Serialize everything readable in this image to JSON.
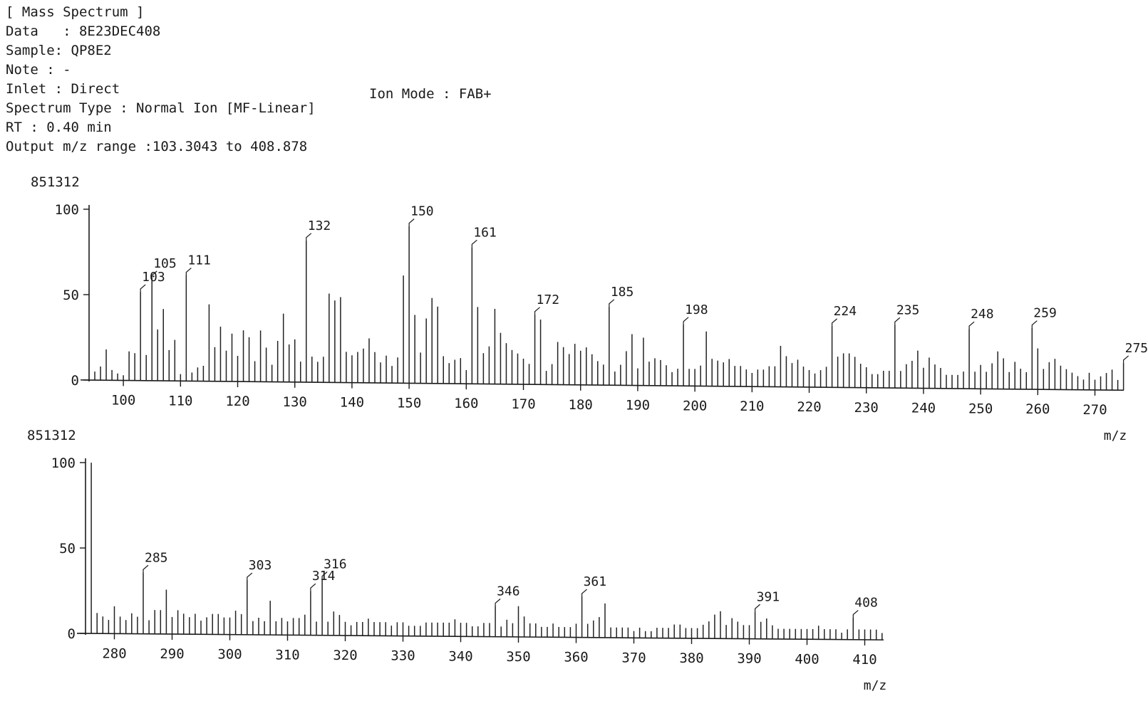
{
  "header": {
    "title": "[ Mass Spectrum ]",
    "data": "Data   : 8E23DEC408",
    "sample": "Sample: QP8E2",
    "note": "Note : -",
    "inlet": "Inlet : Direct",
    "ion_mode": "Ion Mode : FAB+",
    "spectrum_type": "Spectrum Type : Normal Ion [MF-Linear]",
    "rt": "RT : 0.40 min",
    "mz_range": "Output m/z range :103.3043 to 408.878"
  },
  "chart_data": [
    {
      "type": "bar",
      "xlabel": "m/z",
      "ylabel": "",
      "y_max_intensity_label": "851312",
      "xlim": [
        94,
        276
      ],
      "ylim": [
        0,
        100
      ],
      "x_ticks": [
        100,
        110,
        120,
        130,
        140,
        150,
        160,
        170,
        180,
        190,
        200,
        210,
        220,
        230,
        240,
        250,
        260,
        270
      ],
      "y_ticks": [
        0,
        50,
        100
      ],
      "labeled_peaks": [
        {
          "mz": 103,
          "rel": 52,
          "label": "103"
        },
        {
          "mz": 105,
          "rel": 60,
          "label": "105"
        },
        {
          "mz": 111,
          "rel": 62,
          "label": "111"
        },
        {
          "mz": 132,
          "rel": 83,
          "label": "132"
        },
        {
          "mz": 150,
          "rel": 92,
          "label": "150"
        },
        {
          "mz": 161,
          "rel": 80,
          "label": "161"
        },
        {
          "mz": 172,
          "rel": 41,
          "label": "172"
        },
        {
          "mz": 185,
          "rel": 46,
          "label": "185"
        },
        {
          "mz": 198,
          "rel": 36,
          "label": "198"
        },
        {
          "mz": 224,
          "rel": 36,
          "label": "224"
        },
        {
          "mz": 235,
          "rel": 37,
          "label": "235"
        },
        {
          "mz": 248,
          "rel": 35,
          "label": "248"
        },
        {
          "mz": 259,
          "rel": 36,
          "label": "259"
        },
        {
          "mz": 275,
          "rel": 16,
          "label": "275"
        }
      ],
      "peaks": [
        [
          95,
          5
        ],
        [
          96,
          8
        ],
        [
          97,
          18
        ],
        [
          98,
          6
        ],
        [
          99,
          4
        ],
        [
          100,
          3
        ],
        [
          101,
          17
        ],
        [
          102,
          16
        ],
        [
          103,
          52
        ],
        [
          104,
          15
        ],
        [
          105,
          60
        ],
        [
          106,
          30
        ],
        [
          107,
          42
        ],
        [
          108,
          18
        ],
        [
          109,
          24
        ],
        [
          110,
          4
        ],
        [
          111,
          62
        ],
        [
          112,
          5
        ],
        [
          113,
          8
        ],
        [
          114,
          9
        ],
        [
          115,
          45
        ],
        [
          116,
          20
        ],
        [
          117,
          32
        ],
        [
          118,
          18
        ],
        [
          119,
          28
        ],
        [
          120,
          15
        ],
        [
          121,
          30
        ],
        [
          122,
          26
        ],
        [
          123,
          12
        ],
        [
          124,
          30
        ],
        [
          125,
          20
        ],
        [
          126,
          10
        ],
        [
          127,
          24
        ],
        [
          128,
          40
        ],
        [
          129,
          22
        ],
        [
          130,
          25
        ],
        [
          131,
          12
        ],
        [
          132,
          83
        ],
        [
          133,
          15
        ],
        [
          134,
          12
        ],
        [
          135,
          15
        ],
        [
          136,
          52
        ],
        [
          137,
          48
        ],
        [
          138,
          50
        ],
        [
          139,
          18
        ],
        [
          140,
          16
        ],
        [
          141,
          18
        ],
        [
          142,
          20
        ],
        [
          143,
          26
        ],
        [
          144,
          18
        ],
        [
          145,
          12
        ],
        [
          146,
          16
        ],
        [
          147,
          10
        ],
        [
          148,
          15
        ],
        [
          149,
          63
        ],
        [
          150,
          92
        ],
        [
          151,
          40
        ],
        [
          152,
          18
        ],
        [
          153,
          38
        ],
        [
          154,
          50
        ],
        [
          155,
          45
        ],
        [
          156,
          16
        ],
        [
          157,
          12
        ],
        [
          158,
          14
        ],
        [
          159,
          15
        ],
        [
          160,
          8
        ],
        [
          161,
          80
        ],
        [
          162,
          45
        ],
        [
          163,
          18
        ],
        [
          164,
          22
        ],
        [
          165,
          44
        ],
        [
          166,
          30
        ],
        [
          167,
          24
        ],
        [
          168,
          20
        ],
        [
          169,
          18
        ],
        [
          170,
          15
        ],
        [
          171,
          12
        ],
        [
          172,
          41
        ],
        [
          173,
          38
        ],
        [
          174,
          8
        ],
        [
          175,
          12
        ],
        [
          176,
          25
        ],
        [
          177,
          22
        ],
        [
          178,
          18
        ],
        [
          179,
          24
        ],
        [
          180,
          20
        ],
        [
          181,
          22
        ],
        [
          182,
          18
        ],
        [
          183,
          14
        ],
        [
          184,
          12
        ],
        [
          185,
          46
        ],
        [
          186,
          8
        ],
        [
          187,
          12
        ],
        [
          188,
          20
        ],
        [
          189,
          30
        ],
        [
          190,
          10
        ],
        [
          191,
          28
        ],
        [
          192,
          14
        ],
        [
          193,
          16
        ],
        [
          194,
          15
        ],
        [
          195,
          12
        ],
        [
          196,
          8
        ],
        [
          197,
          10
        ],
        [
          198,
          36
        ],
        [
          199,
          10
        ],
        [
          200,
          10
        ],
        [
          201,
          12
        ],
        [
          202,
          32
        ],
        [
          203,
          16
        ],
        [
          204,
          15
        ],
        [
          205,
          14
        ],
        [
          206,
          16
        ],
        [
          207,
          12
        ],
        [
          208,
          12
        ],
        [
          209,
          10
        ],
        [
          210,
          8
        ],
        [
          211,
          10
        ],
        [
          212,
          10
        ],
        [
          213,
          12
        ],
        [
          214,
          12
        ],
        [
          215,
          24
        ],
        [
          216,
          18
        ],
        [
          217,
          14
        ],
        [
          218,
          16
        ],
        [
          219,
          12
        ],
        [
          220,
          10
        ],
        [
          221,
          8
        ],
        [
          222,
          10
        ],
        [
          223,
          12
        ],
        [
          224,
          36
        ],
        [
          225,
          18
        ],
        [
          226,
          20
        ],
        [
          227,
          20
        ],
        [
          228,
          18
        ],
        [
          229,
          14
        ],
        [
          230,
          12
        ],
        [
          231,
          8
        ],
        [
          232,
          8
        ],
        [
          233,
          10
        ],
        [
          234,
          10
        ],
        [
          235,
          37
        ],
        [
          236,
          10
        ],
        [
          237,
          14
        ],
        [
          238,
          16
        ],
        [
          239,
          22
        ],
        [
          240,
          12
        ],
        [
          241,
          18
        ],
        [
          242,
          14
        ],
        [
          243,
          12
        ],
        [
          244,
          8
        ],
        [
          245,
          8
        ],
        [
          246,
          8
        ],
        [
          247,
          10
        ],
        [
          248,
          35
        ],
        [
          249,
          10
        ],
        [
          250,
          14
        ],
        [
          251,
          10
        ],
        [
          252,
          15
        ],
        [
          253,
          22
        ],
        [
          254,
          18
        ],
        [
          255,
          10
        ],
        [
          256,
          16
        ],
        [
          257,
          12
        ],
        [
          258,
          10
        ],
        [
          259,
          36
        ],
        [
          260,
          24
        ],
        [
          261,
          12
        ],
        [
          262,
          16
        ],
        [
          263,
          18
        ],
        [
          264,
          14
        ],
        [
          265,
          12
        ],
        [
          266,
          10
        ],
        [
          267,
          8
        ],
        [
          268,
          6
        ],
        [
          269,
          10
        ],
        [
          270,
          6
        ],
        [
          271,
          8
        ],
        [
          272,
          10
        ],
        [
          273,
          12
        ],
        [
          274,
          6
        ],
        [
          275,
          16
        ]
      ]
    },
    {
      "type": "bar",
      "xlabel": "m/z",
      "ylabel": "",
      "y_max_intensity_label": "851312",
      "xlim": [
        275,
        414
      ],
      "ylim": [
        0,
        100
      ],
      "x_ticks": [
        280,
        290,
        300,
        310,
        320,
        330,
        340,
        350,
        360,
        370,
        380,
        390,
        400,
        410
      ],
      "y_ticks": [
        0,
        50,
        100
      ],
      "labeled_peaks": [
        {
          "mz": 285,
          "rel": 36,
          "label": "285"
        },
        {
          "mz": 303,
          "rel": 32,
          "label": "303"
        },
        {
          "mz": 314,
          "rel": 26,
          "label": "314"
        },
        {
          "mz": 316,
          "rel": 33,
          "label": "316"
        },
        {
          "mz": 346,
          "rel": 18,
          "label": "346"
        },
        {
          "mz": 361,
          "rel": 24,
          "label": "361"
        },
        {
          "mz": 391,
          "rel": 16,
          "label": "391"
        },
        {
          "mz": 408,
          "rel": 13,
          "label": "408"
        }
      ],
      "peaks": [
        [
          276,
          100
        ],
        [
          277,
          12
        ],
        [
          278,
          10
        ],
        [
          279,
          8
        ],
        [
          280,
          16
        ],
        [
          281,
          10
        ],
        [
          282,
          8
        ],
        [
          283,
          12
        ],
        [
          284,
          10
        ],
        [
          285,
          36
        ],
        [
          286,
          8
        ],
        [
          287,
          14
        ],
        [
          288,
          14
        ],
        [
          289,
          26
        ],
        [
          290,
          10
        ],
        [
          291,
          14
        ],
        [
          292,
          12
        ],
        [
          293,
          10
        ],
        [
          294,
          12
        ],
        [
          295,
          8
        ],
        [
          296,
          10
        ],
        [
          297,
          12
        ],
        [
          298,
          12
        ],
        [
          299,
          10
        ],
        [
          300,
          10
        ],
        [
          301,
          14
        ],
        [
          302,
          12
        ],
        [
          303,
          32
        ],
        [
          304,
          8
        ],
        [
          305,
          10
        ],
        [
          306,
          8
        ],
        [
          307,
          20
        ],
        [
          308,
          8
        ],
        [
          309,
          10
        ],
        [
          310,
          8
        ],
        [
          311,
          10
        ],
        [
          312,
          10
        ],
        [
          313,
          12
        ],
        [
          314,
          26
        ],
        [
          315,
          8
        ],
        [
          316,
          33
        ],
        [
          317,
          8
        ],
        [
          318,
          14
        ],
        [
          319,
          12
        ],
        [
          320,
          8
        ],
        [
          321,
          6
        ],
        [
          322,
          8
        ],
        [
          323,
          8
        ],
        [
          324,
          10
        ],
        [
          325,
          8
        ],
        [
          326,
          8
        ],
        [
          327,
          8
        ],
        [
          328,
          6
        ],
        [
          329,
          8
        ],
        [
          330,
          8
        ],
        [
          331,
          6
        ],
        [
          332,
          6
        ],
        [
          333,
          6
        ],
        [
          334,
          8
        ],
        [
          335,
          8
        ],
        [
          336,
          8
        ],
        [
          337,
          8
        ],
        [
          338,
          8
        ],
        [
          339,
          10
        ],
        [
          340,
          8
        ],
        [
          341,
          8
        ],
        [
          342,
          6
        ],
        [
          343,
          6
        ],
        [
          344,
          8
        ],
        [
          345,
          8
        ],
        [
          346,
          18
        ],
        [
          347,
          6
        ],
        [
          348,
          10
        ],
        [
          349,
          8
        ],
        [
          350,
          18
        ],
        [
          351,
          12
        ],
        [
          352,
          8
        ],
        [
          353,
          8
        ],
        [
          354,
          6
        ],
        [
          355,
          6
        ],
        [
          356,
          8
        ],
        [
          357,
          6
        ],
        [
          358,
          6
        ],
        [
          359,
          6
        ],
        [
          360,
          8
        ],
        [
          361,
          24
        ],
        [
          362,
          8
        ],
        [
          363,
          10
        ],
        [
          364,
          12
        ],
        [
          365,
          20
        ],
        [
          366,
          6
        ],
        [
          367,
          6
        ],
        [
          368,
          6
        ],
        [
          369,
          6
        ],
        [
          370,
          4
        ],
        [
          371,
          6
        ],
        [
          372,
          4
        ],
        [
          373,
          4
        ],
        [
          374,
          6
        ],
        [
          375,
          6
        ],
        [
          376,
          6
        ],
        [
          377,
          8
        ],
        [
          378,
          8
        ],
        [
          379,
          6
        ],
        [
          380,
          6
        ],
        [
          381,
          6
        ],
        [
          382,
          8
        ],
        [
          383,
          10
        ],
        [
          384,
          14
        ],
        [
          385,
          16
        ],
        [
          386,
          8
        ],
        [
          387,
          12
        ],
        [
          388,
          10
        ],
        [
          389,
          8
        ],
        [
          390,
          8
        ],
        [
          391,
          16
        ],
        [
          392,
          10
        ],
        [
          393,
          12
        ],
        [
          394,
          8
        ],
        [
          395,
          6
        ],
        [
          396,
          6
        ],
        [
          397,
          6
        ],
        [
          398,
          6
        ],
        [
          399,
          6
        ],
        [
          400,
          6
        ],
        [
          401,
          6
        ],
        [
          402,
          8
        ],
        [
          403,
          6
        ],
        [
          404,
          6
        ],
        [
          405,
          6
        ],
        [
          406,
          4
        ],
        [
          407,
          6
        ],
        [
          408,
          13
        ],
        [
          409,
          6
        ],
        [
          410,
          6
        ],
        [
          411,
          6
        ],
        [
          412,
          6
        ],
        [
          413,
          4
        ]
      ]
    }
  ]
}
